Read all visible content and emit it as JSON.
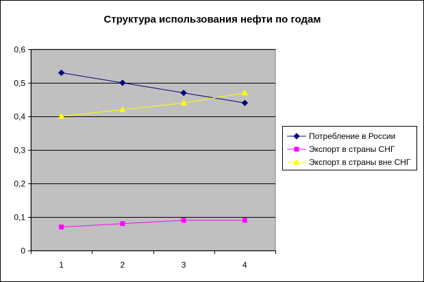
{
  "chart_data": {
    "type": "line",
    "title": "Структура использования нефти по годам",
    "xlabel": "",
    "ylabel": "",
    "categories": [
      "1",
      "2",
      "3",
      "4"
    ],
    "ylim": [
      0,
      0.6
    ],
    "yticks": [
      "0",
      "0,1",
      "0,2",
      "0,3",
      "0,4",
      "0,5",
      "0,6"
    ],
    "grid": true,
    "legend_position": "right",
    "plot_background": "#c0c0c0",
    "series": [
      {
        "name": "Потребление в России",
        "values": [
          0.53,
          0.5,
          0.47,
          0.44
        ],
        "color": "#000080",
        "marker": "diamond"
      },
      {
        "name": "Экспорт в страны СНГ",
        "values": [
          0.07,
          0.08,
          0.09,
          0.09
        ],
        "color": "#ff00ff",
        "marker": "square"
      },
      {
        "name": "Экспорт в страны вне СНГ",
        "values": [
          0.4,
          0.42,
          0.44,
          0.47
        ],
        "color": "#ffff00",
        "marker": "triangle"
      }
    ]
  }
}
